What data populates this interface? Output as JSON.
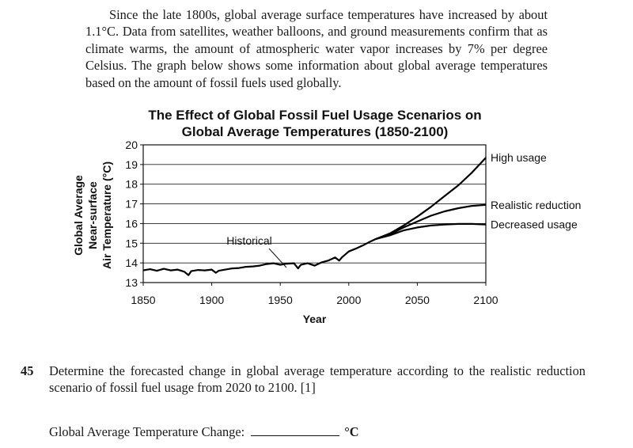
{
  "intro_text": "Since the late 1800s, global average surface temperatures have increased by about 1.1°C. Data from satellites, weather balloons, and ground measurements confirm that as climate warms, the amount of atmospheric water vapor increases by 7% per degree Celsius. The graph below shows some information about global average temperatures based on the amount of fossil fuels used globally.",
  "chart_data": {
    "type": "line",
    "title_line1": "The Effect of Global Fossil Fuel Usage Scenarios on",
    "title_line2": "Global Average Temperatures (1850-2100)",
    "xlabel": "Year",
    "ylabel_lines": [
      "Global Average",
      "Near-surface",
      "Air Temperature (°C)"
    ],
    "xlim": [
      1850,
      2100
    ],
    "ylim": [
      13,
      20
    ],
    "x_ticks": [
      1850,
      1900,
      1950,
      2000,
      2050,
      2100
    ],
    "y_ticks": [
      13,
      14,
      15,
      16,
      17,
      18,
      19,
      20
    ],
    "grid": "horizontal",
    "series": [
      {
        "name": "Historical",
        "x": [
          1850,
          1855,
          1860,
          1865,
          1870,
          1875,
          1880,
          1883,
          1885,
          1890,
          1895,
          1900,
          1903,
          1905,
          1910,
          1915,
          1920,
          1925,
          1930,
          1935,
          1940,
          1945,
          1950,
          1955,
          1960,
          1963,
          1965,
          1970,
          1975,
          1980,
          1985,
          1990,
          1993,
          1995,
          2000,
          2005,
          2010,
          2015,
          2020
        ],
        "y": [
          13.62,
          13.68,
          13.6,
          13.7,
          13.62,
          13.66,
          13.55,
          13.38,
          13.58,
          13.64,
          13.62,
          13.66,
          13.5,
          13.6,
          13.66,
          13.72,
          13.74,
          13.8,
          13.82,
          13.86,
          13.94,
          13.98,
          13.9,
          13.96,
          13.98,
          13.72,
          13.9,
          13.98,
          13.86,
          14.02,
          14.12,
          14.28,
          14.12,
          14.28,
          14.58,
          14.72,
          14.88,
          15.06,
          15.22
        ]
      },
      {
        "name": "High usage",
        "x": [
          2020,
          2030,
          2040,
          2050,
          2060,
          2070,
          2080,
          2090,
          2100
        ],
        "y": [
          15.22,
          15.5,
          15.9,
          16.35,
          16.85,
          17.4,
          17.95,
          18.6,
          19.35
        ]
      },
      {
        "name": "Realistic reduction",
        "x": [
          2020,
          2030,
          2040,
          2050,
          2060,
          2070,
          2080,
          2090,
          2100
        ],
        "y": [
          15.22,
          15.45,
          15.8,
          16.1,
          16.4,
          16.62,
          16.78,
          16.9,
          16.95
        ]
      },
      {
        "name": "Decreased usage",
        "x": [
          2020,
          2030,
          2040,
          2050,
          2060,
          2070,
          2080,
          2090,
          2100
        ],
        "y": [
          15.22,
          15.4,
          15.65,
          15.8,
          15.9,
          15.95,
          15.98,
          15.98,
          15.95
        ]
      }
    ]
  },
  "question": {
    "number": "45",
    "text": "Determine the forecasted change in global average temperature according to the realistic reduction scenario of fossil fuel usage from 2020 to 2100.  [1]",
    "answer_label": "Global Average Temperature Change:",
    "answer_unit": "°C"
  }
}
